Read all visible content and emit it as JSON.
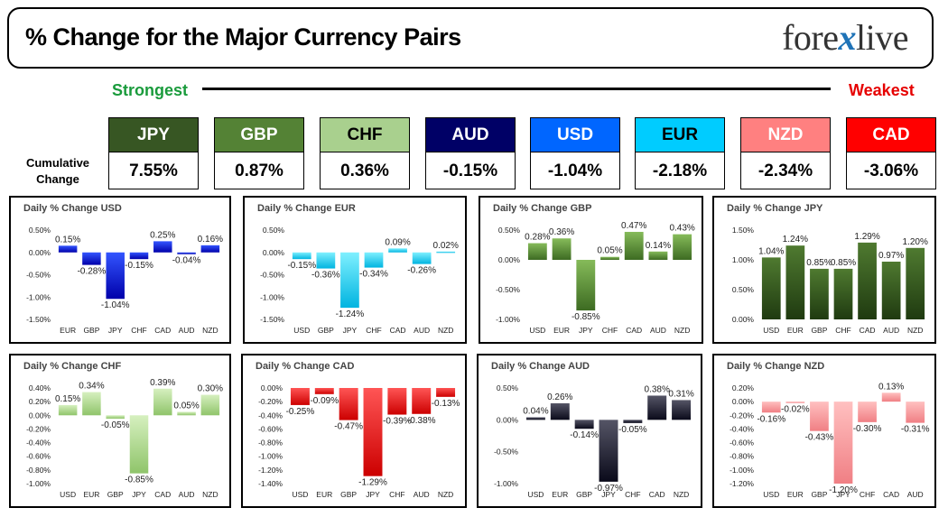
{
  "header": {
    "title": "% Change for the Major Currency Pairs",
    "logo_left": "fore",
    "logo_x": "x",
    "logo_right": "live"
  },
  "ranking": {
    "strongest_label": "Strongest",
    "weakest_label": "Weakest",
    "cumulative_label_line1": "Cumulative",
    "cumulative_label_line2": "Change",
    "currencies": [
      {
        "name": "JPY",
        "value": "7.55%",
        "color": "#375623",
        "text_color": "#ffffff"
      },
      {
        "name": "GBP",
        "value": "0.87%",
        "color": "#548235",
        "text_color": "#ffffff"
      },
      {
        "name": "CHF",
        "value": "0.36%",
        "color": "#a9d08e",
        "text_color": "#000000"
      },
      {
        "name": "AUD",
        "value": "-0.15%",
        "color": "#000066",
        "text_color": "#ffffff"
      },
      {
        "name": "USD",
        "value": "-1.04%",
        "color": "#0066ff",
        "text_color": "#ffffff"
      },
      {
        "name": "EUR",
        "value": "-2.18%",
        "color": "#00ccff",
        "text_color": "#000000"
      },
      {
        "name": "NZD",
        "value": "-2.34%",
        "color": "#ff8080",
        "text_color": "#ffffff"
      },
      {
        "name": "CAD",
        "value": "-3.06%",
        "color": "#ff0000",
        "text_color": "#ffffff"
      }
    ]
  },
  "chart_data": [
    {
      "type": "bar",
      "title": "Daily % Change USD",
      "categories": [
        "EUR",
        "GBP",
        "JPY",
        "CHF",
        "CAD",
        "AUD",
        "NZD"
      ],
      "values": [
        0.15,
        -0.28,
        -1.04,
        -0.15,
        0.25,
        -0.04,
        0.16
      ],
      "labels": [
        "0.15%",
        "-0.28%",
        "-1.04%",
        "-0.15%",
        "0.25%",
        "-0.04%",
        "0.16%"
      ],
      "ylim": [
        -1.5,
        0.5
      ],
      "ticks": [
        0.5,
        0,
        -0.5,
        -1,
        -1.5
      ],
      "tick_labels": [
        "0.50%",
        "0.00%",
        "-0.50%",
        "-1.00%",
        "-1.50%"
      ],
      "color_top": "#3355ff",
      "color_bottom": "#0000aa"
    },
    {
      "type": "bar",
      "title": "Daily % Change EUR",
      "categories": [
        "USD",
        "GBP",
        "JPY",
        "CHF",
        "CAD",
        "AUD",
        "NZD"
      ],
      "values": [
        -0.15,
        -0.36,
        -1.24,
        -0.34,
        0.09,
        -0.26,
        0.02
      ],
      "labels": [
        "-0.15%",
        "-0.36%",
        "-1.24%",
        "-0.34%",
        "0.09%",
        "-0.26%",
        "0.02%"
      ],
      "ylim": [
        -1.5,
        0.5
      ],
      "ticks": [
        0.5,
        0,
        -0.5,
        -1,
        -1.5
      ],
      "tick_labels": [
        "0.50%",
        "0.00%",
        "-0.50%",
        "-1.00%",
        "-1.50%"
      ],
      "color_top": "#7ff0ff",
      "color_bottom": "#00b4e0"
    },
    {
      "type": "bar",
      "title": "Daily % Change GBP",
      "categories": [
        "USD",
        "EUR",
        "JPY",
        "CHF",
        "CAD",
        "AUD",
        "NZD"
      ],
      "values": [
        0.28,
        0.36,
        -0.85,
        0.05,
        0.47,
        0.14,
        0.43
      ],
      "labels": [
        "0.28%",
        "0.36%",
        "-0.85%",
        "0.05%",
        "0.47%",
        "0.14%",
        "0.43%"
      ],
      "ylim": [
        -1,
        0.5
      ],
      "ticks": [
        0.5,
        0,
        -0.5,
        -1
      ],
      "tick_labels": [
        "0.50%",
        "0.00%",
        "-0.50%",
        "-1.00%"
      ],
      "color_top": "#86bb5a",
      "color_bottom": "#3d6b22"
    },
    {
      "type": "bar",
      "title": "Daily % Change JPY",
      "categories": [
        "USD",
        "EUR",
        "GBP",
        "CHF",
        "CAD",
        "AUD",
        "NZD"
      ],
      "values": [
        1.04,
        1.24,
        0.85,
        0.85,
        1.29,
        0.97,
        1.2
      ],
      "labels": [
        "1.04%",
        "1.24%",
        "0.85%",
        "0.85%",
        "1.29%",
        "0.97%",
        "1.20%"
      ],
      "ylim": [
        0,
        1.5
      ],
      "ticks": [
        1.5,
        1,
        0.5,
        0
      ],
      "tick_labels": [
        "1.50%",
        "1.00%",
        "0.50%",
        "0.00%"
      ],
      "color_top": "#4f7a30",
      "color_bottom": "#1f3a10"
    },
    {
      "type": "bar",
      "title": "Daily % Change CHF",
      "categories": [
        "USD",
        "EUR",
        "GBP",
        "JPY",
        "CAD",
        "AUD",
        "NZD"
      ],
      "values": [
        0.15,
        0.34,
        -0.05,
        -0.85,
        0.39,
        0.05,
        0.3
      ],
      "labels": [
        "0.15%",
        "0.34%",
        "-0.05%",
        "-0.85%",
        "0.39%",
        "0.05%",
        "0.30%"
      ],
      "ylim": [
        -1,
        0.4
      ],
      "ticks": [
        0.4,
        0.2,
        0,
        -0.2,
        -0.4,
        -0.6,
        -0.8,
        -1
      ],
      "tick_labels": [
        "0.40%",
        "0.20%",
        "0.00%",
        "-0.20%",
        "-0.40%",
        "-0.60%",
        "-0.80%",
        "-1.00%"
      ],
      "color_top": "#d6f0bf",
      "color_bottom": "#8fc46a"
    },
    {
      "type": "bar",
      "title": "Daily % Change CAD",
      "categories": [
        "USD",
        "EUR",
        "GBP",
        "JPY",
        "CHF",
        "AUD",
        "NZD"
      ],
      "values": [
        -0.25,
        -0.09,
        -0.47,
        -1.29,
        -0.39,
        -0.38,
        -0.13
      ],
      "labels": [
        "-0.25%",
        "-0.09%",
        "-0.47%",
        "-1.29%",
        "-0.39%",
        "-0.38%",
        "-0.13%"
      ],
      "ylim": [
        -1.4,
        0
      ],
      "ticks": [
        0,
        -0.2,
        -0.4,
        -0.6,
        -0.8,
        -1,
        -1.2,
        -1.4
      ],
      "tick_labels": [
        "0.00%",
        "-0.20%",
        "-0.40%",
        "-0.60%",
        "-0.80%",
        "-1.00%",
        "-1.20%",
        "-1.40%"
      ],
      "color_top": "#ff5555",
      "color_bottom": "#cc0000"
    },
    {
      "type": "bar",
      "title": "Daily % Change AUD",
      "categories": [
        "USD",
        "EUR",
        "GBP",
        "JPY",
        "CHF",
        "CAD",
        "NZD"
      ],
      "values": [
        0.04,
        0.26,
        -0.14,
        -0.97,
        -0.05,
        0.38,
        0.31
      ],
      "labels": [
        "0.04%",
        "0.26%",
        "-0.14%",
        "-0.97%",
        "-0.05%",
        "0.38%",
        "0.31%"
      ],
      "ylim": [
        -1,
        0.5
      ],
      "ticks": [
        0.5,
        0,
        -0.5,
        -1
      ],
      "tick_labels": [
        "0.50%",
        "0.00%",
        "-0.50%",
        "-1.00%"
      ],
      "color_top": "#555566",
      "color_bottom": "#0a0a1a"
    },
    {
      "type": "bar",
      "title": "Daily % Change NZD",
      "categories": [
        "USD",
        "EUR",
        "GBP",
        "JPY",
        "CHF",
        "CAD",
        "AUD"
      ],
      "values": [
        -0.16,
        -0.02,
        -0.43,
        -1.2,
        -0.3,
        0.13,
        -0.31
      ],
      "labels": [
        "-0.16%",
        "-0.02%",
        "-0.43%",
        "-1.20%",
        "-0.30%",
        "0.13%",
        "-0.31%"
      ],
      "ylim": [
        -1.2,
        0.2
      ],
      "ticks": [
        0.2,
        0,
        -0.2,
        -0.4,
        -0.6,
        -0.8,
        -1,
        -1.2
      ],
      "tick_labels": [
        "0.20%",
        "0.00%",
        "-0.20%",
        "-0.40%",
        "-0.60%",
        "-0.80%",
        "-1.00%",
        "-1.20%"
      ],
      "color_top": "#ffc0c0",
      "color_bottom": "#f07f84"
    }
  ]
}
